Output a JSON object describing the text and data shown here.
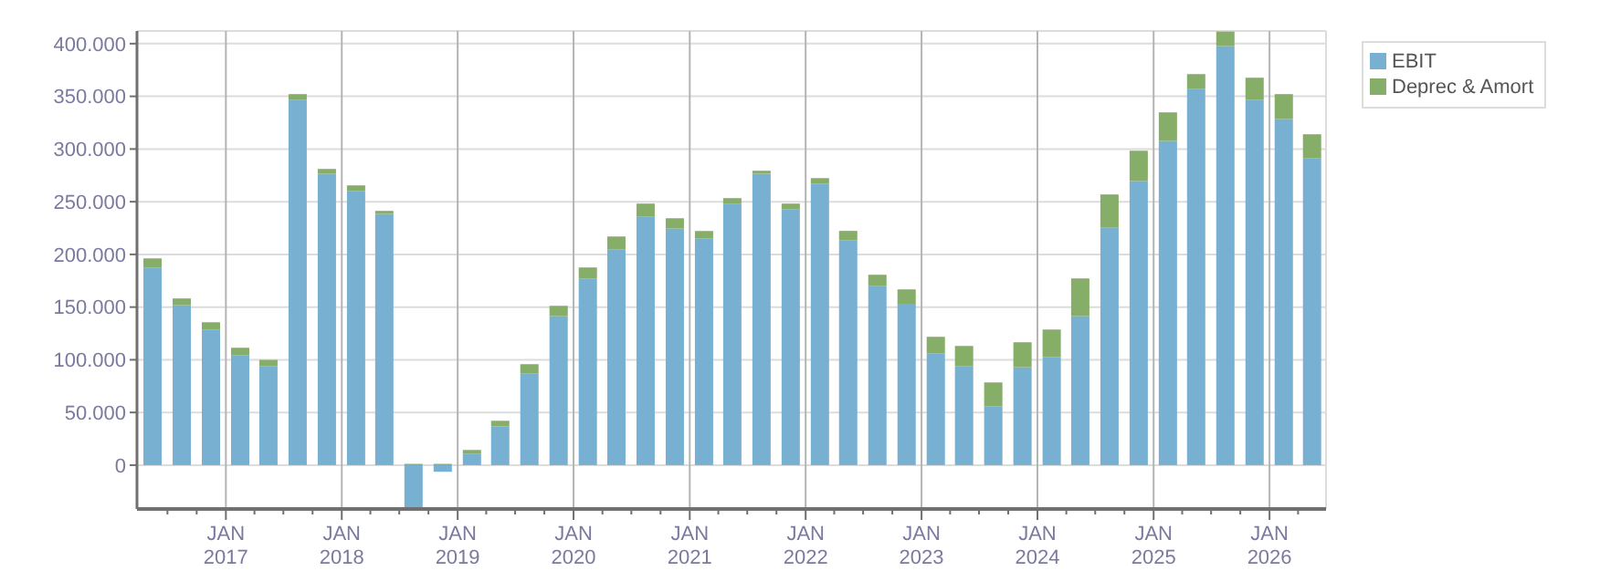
{
  "chart_data": {
    "type": "bar",
    "stacked": true,
    "legend": "top right",
    "grid": true,
    "x": [
      "2016-05-15",
      "2016-08-15",
      "2016-11-15",
      "2017-02-15",
      "2017-05-15",
      "2017-08-15",
      "2017-11-15",
      "2018-02-15",
      "2018-05-15",
      "2018-08-15",
      "2018-11-15",
      "2019-02-15",
      "2019-05-15",
      "2019-08-15",
      "2019-11-15",
      "2020-02-15",
      "2020-05-15",
      "2020-08-15",
      "2020-11-15",
      "2021-02-15",
      "2021-05-15",
      "2021-08-15",
      "2021-11-15",
      "2022-02-15",
      "2022-05-15",
      "2022-08-15",
      "2022-11-15",
      "2023-02-15",
      "2023-05-15",
      "2023-08-15",
      "2023-11-15",
      "2024-02-15",
      "2024-05-15",
      "2024-08-15",
      "2024-11-15",
      "2025-02-15",
      "2025-05-15",
      "2025-08-15",
      "2025-11-15",
      "2026-02-15",
      "2026-05-15"
    ],
    "series": [
      {
        "name": "EBIT",
        "color": "#78b0d2",
        "values": [
          187600,
          151800,
          128700,
          104500,
          94100,
          346900,
          276500,
          260300,
          238400,
          -41600,
          -6300,
          11000,
          36900,
          87200,
          141400,
          177200,
          204900,
          236100,
          224500,
          215300,
          248200,
          276500,
          243000,
          267200,
          213600,
          170300,
          152400,
          106200,
          94100,
          56000,
          92900,
          102700,
          141400,
          225700,
          269600,
          307700,
          357300,
          397700,
          346900,
          328400,
          291500
        ]
      },
      {
        "name": "Deprec & Amort",
        "color": "#87ae68",
        "values": [
          8600,
          6400,
          6900,
          6900,
          5800,
          5200,
          4600,
          5200,
          2900,
          1200,
          1200,
          3400,
          5200,
          8600,
          9800,
          10400,
          12100,
          12100,
          9800,
          6900,
          5200,
          2900,
          5200,
          5200,
          8700,
          10400,
          14400,
          15600,
          19000,
          22500,
          23700,
          26000,
          35800,
          31200,
          28800,
          27100,
          13800,
          13800,
          20800,
          23700,
          22500
        ]
      }
    ],
    "xlim": [
      "2016-03-27",
      "2026-06-28"
    ],
    "xticks": [
      {
        "value": "2016-07-01",
        "label": null
      },
      {
        "value": "2016-10-01",
        "label": null
      },
      {
        "value": "2017-01-01",
        "label": "JAN 2017"
      },
      {
        "value": "2017-04-01",
        "label": null
      },
      {
        "value": "2017-07-01",
        "label": null
      },
      {
        "value": "2017-10-01",
        "label": null
      },
      {
        "value": "2018-01-01",
        "label": "JAN 2018"
      },
      {
        "value": "2018-04-01",
        "label": null
      },
      {
        "value": "2018-07-01",
        "label": null
      },
      {
        "value": "2018-10-01",
        "label": null
      },
      {
        "value": "2019-01-01",
        "label": "JAN 2019"
      },
      {
        "value": "2019-04-01",
        "label": null
      },
      {
        "value": "2019-07-01",
        "label": null
      },
      {
        "value": "2019-10-01",
        "label": null
      },
      {
        "value": "2020-01-01",
        "label": "JAN 2020"
      },
      {
        "value": "2020-04-01",
        "label": null
      },
      {
        "value": "2020-07-01",
        "label": null
      },
      {
        "value": "2020-10-01",
        "label": null
      },
      {
        "value": "2021-01-01",
        "label": "JAN 2021"
      },
      {
        "value": "2021-04-01",
        "label": null
      },
      {
        "value": "2021-07-01",
        "label": null
      },
      {
        "value": "2021-10-01",
        "label": null
      },
      {
        "value": "2022-01-01",
        "label": "JAN 2022"
      },
      {
        "value": "2022-04-01",
        "label": null
      },
      {
        "value": "2022-07-01",
        "label": null
      },
      {
        "value": "2022-10-01",
        "label": null
      },
      {
        "value": "2023-01-01",
        "label": "JAN 2023"
      },
      {
        "value": "2023-04-01",
        "label": null
      },
      {
        "value": "2023-07-01",
        "label": null
      },
      {
        "value": "2023-10-01",
        "label": null
      },
      {
        "value": "2024-01-01",
        "label": "JAN 2024"
      },
      {
        "value": "2024-04-01",
        "label": null
      },
      {
        "value": "2024-07-01",
        "label": null
      },
      {
        "value": "2024-10-01",
        "label": null
      },
      {
        "value": "2025-01-01",
        "label": "JAN 2025"
      },
      {
        "value": "2025-04-01",
        "label": null
      },
      {
        "value": "2025-07-01",
        "label": null
      },
      {
        "value": "2025-10-01",
        "label": null
      },
      {
        "value": "2026-01-01",
        "label": "JAN 2026"
      },
      {
        "value": "2026-04-01",
        "label": null
      }
    ],
    "ylim": [
      -41600,
      412000
    ],
    "yticks": [
      0,
      {
        "value": 50000,
        "label": "50.000"
      },
      {
        "value": 100000,
        "label": "100.000"
      },
      {
        "value": 150000,
        "label": "150.000"
      },
      {
        "value": 200000,
        "label": "200.000"
      },
      {
        "value": 250000,
        "label": "250.000"
      },
      {
        "value": 300000,
        "label": "300.000"
      },
      {
        "value": 350000,
        "label": "350.000"
      },
      {
        "value": 400000,
        "label": "400.000"
      }
    ]
  }
}
